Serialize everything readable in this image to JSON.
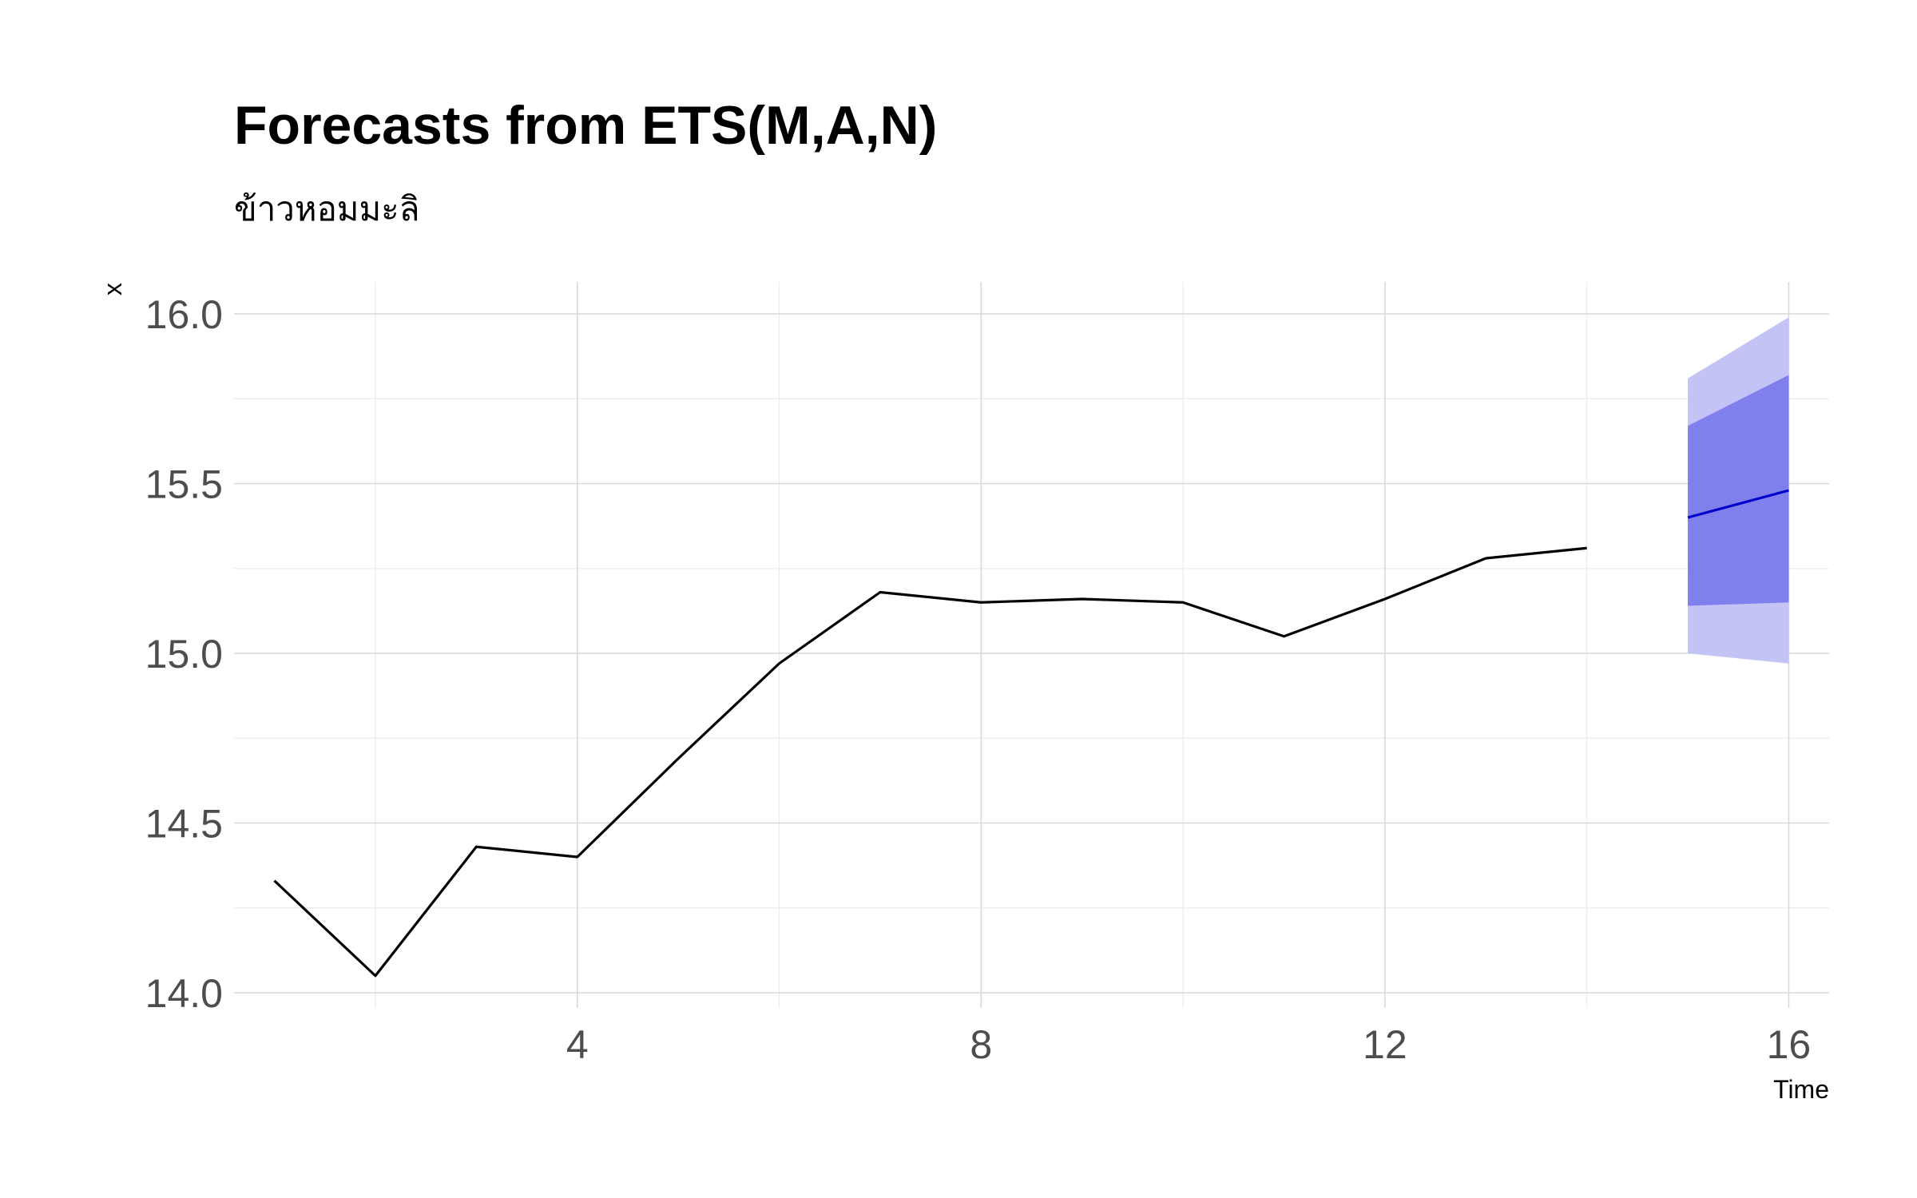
{
  "chart_data": {
    "type": "line",
    "title": "Forecasts from ETS(M,A,N)",
    "subtitle": "ข้าวหอมมะลิ",
    "xlabel": "Time",
    "ylabel": "x",
    "xlim": [
      0.6,
      16.4
    ],
    "ylim": [
      14.0,
      16.0
    ],
    "x_ticks": [
      4,
      8,
      12,
      16
    ],
    "x_tick_labels": [
      "4",
      "8",
      "12",
      "16"
    ],
    "y_ticks": [
      14.0,
      14.5,
      15.0,
      15.5,
      16.0
    ],
    "y_tick_labels": [
      "14.0",
      "14.5",
      "15.0",
      "15.5",
      "16.0"
    ],
    "grid": true,
    "legend": "none",
    "series": [
      {
        "color": "#000000",
        "x": [
          1,
          2,
          3,
          4,
          5,
          6,
          7,
          8,
          9,
          10,
          11,
          12,
          13,
          14
        ],
        "values": [
          14.33,
          14.05,
          14.43,
          14.4,
          14.69,
          14.97,
          15.18,
          15.15,
          15.16,
          15.15,
          15.05,
          15.16,
          15.28,
          15.31
        ]
      }
    ],
    "forecast": {
      "color": "#0000cc",
      "x": [
        15,
        16
      ],
      "mean": [
        15.4,
        15.48
      ],
      "lo80": [
        15.14,
        15.15
      ],
      "hi80": [
        15.67,
        15.82
      ],
      "lo95": [
        15.0,
        14.97
      ],
      "hi95": [
        15.81,
        15.99
      ],
      "band80_color": "#7f7fee",
      "band95_color": "#c3c3f5"
    }
  }
}
